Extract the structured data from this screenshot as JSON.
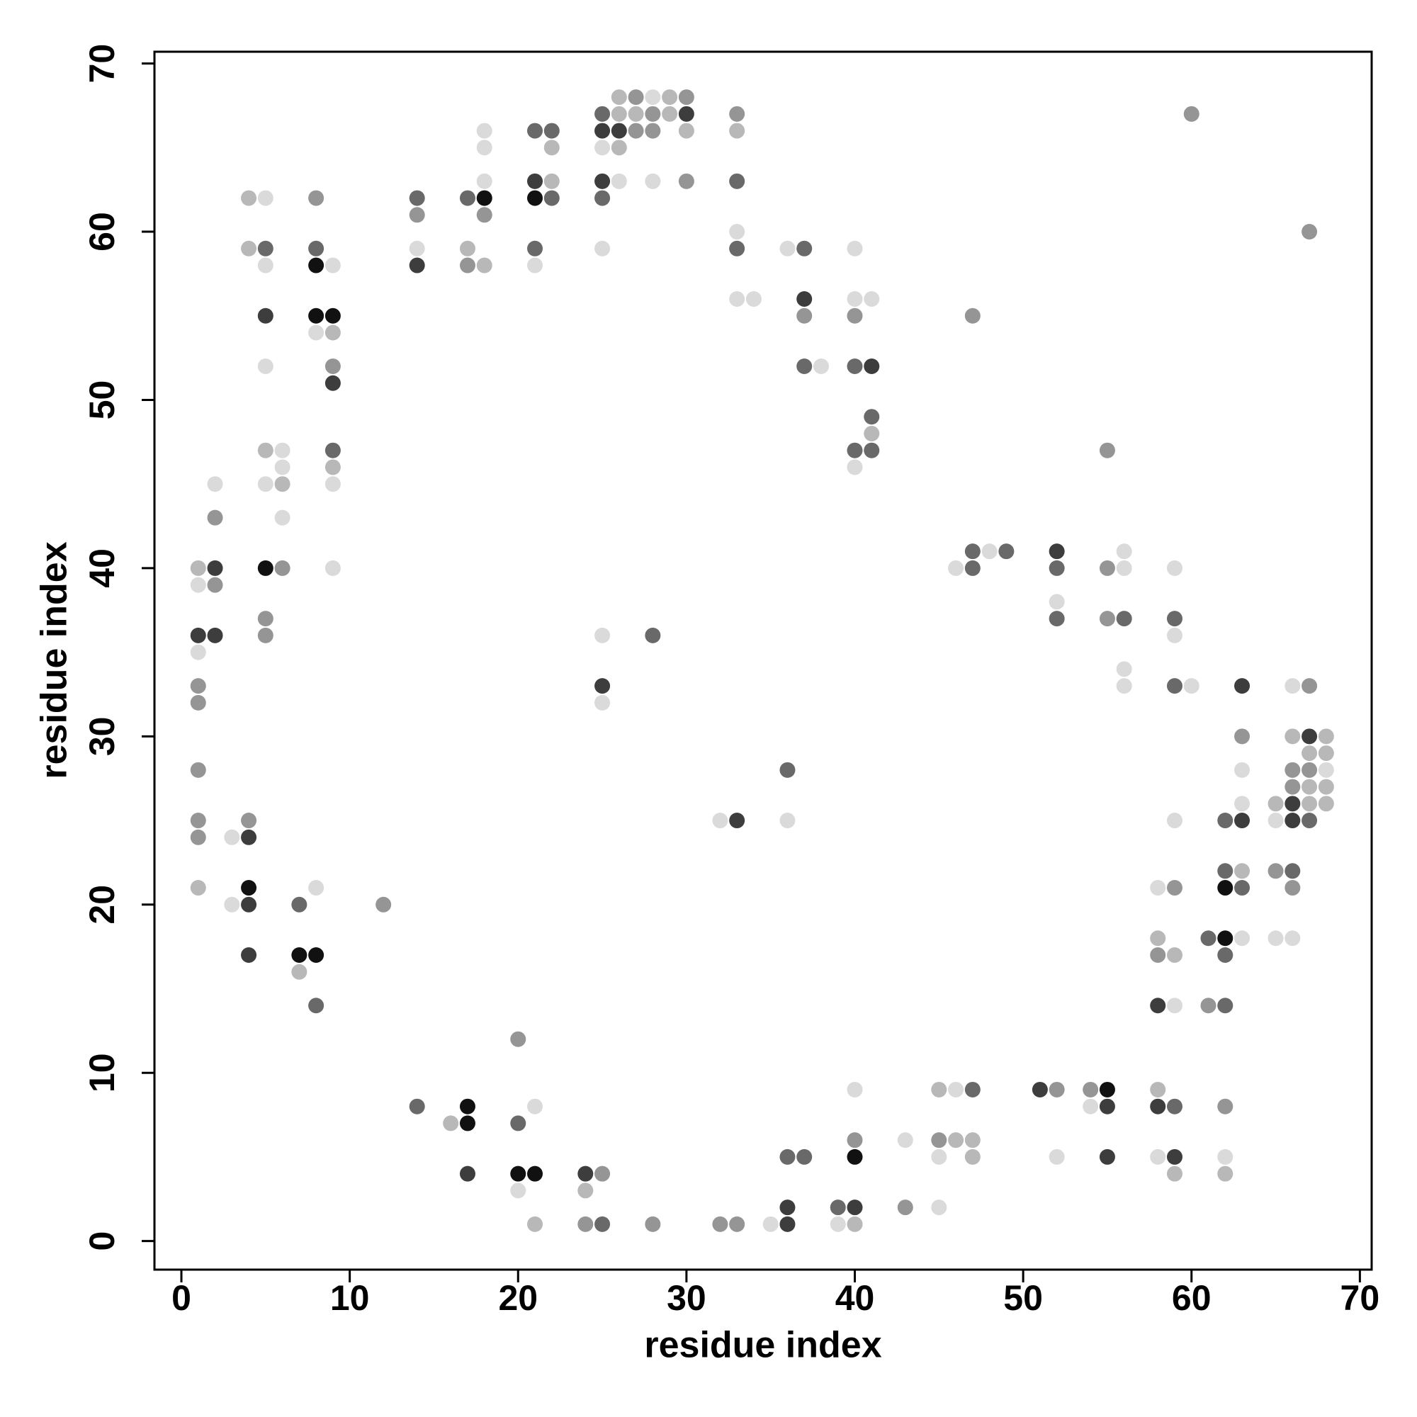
{
  "chart_data": {
    "type": "scatter",
    "xlabel": "residue index",
    "ylabel": "residue index",
    "xlim": [
      -1.6,
      70.7
    ],
    "ylim": [
      -1.7,
      70.7
    ],
    "xticks": [
      0,
      10,
      20,
      30,
      40,
      50,
      60,
      70
    ],
    "yticks": [
      0,
      10,
      20,
      30,
      40,
      50,
      60,
      70
    ],
    "grid": false,
    "x": [
      1,
      1,
      1,
      1,
      1,
      1,
      1,
      1,
      1,
      1,
      2,
      2,
      2,
      2,
      2,
      3,
      3,
      4,
      4,
      4,
      4,
      4,
      4,
      4,
      5,
      5,
      5,
      5,
      5,
      5,
      5,
      5,
      5,
      5,
      6,
      6,
      6,
      6,
      6,
      7,
      7,
      7,
      8,
      8,
      8,
      8,
      8,
      8,
      8,
      8,
      9,
      9,
      9,
      9,
      9,
      9,
      9,
      9,
      9,
      12,
      14,
      14,
      14,
      14,
      14,
      16,
      17,
      17,
      17,
      17,
      17,
      17,
      18,
      18,
      18,
      18,
      18,
      18,
      20,
      20,
      20,
      20,
      21,
      21,
      21,
      21,
      21,
      21,
      21,
      21,
      22,
      22,
      22,
      22,
      24,
      24,
      24,
      25,
      25,
      25,
      25,
      25,
      25,
      25,
      25,
      25,
      25,
      25,
      26,
      26,
      26,
      26,
      26,
      27,
      27,
      27,
      28,
      28,
      28,
      28,
      28,
      28,
      29,
      29,
      30,
      30,
      30,
      30,
      32,
      32,
      33,
      33,
      33,
      33,
      33,
      33,
      33,
      33,
      34,
      35,
      36,
      36,
      36,
      36,
      36,
      36,
      37,
      37,
      37,
      37,
      37,
      38,
      39,
      39,
      40,
      40,
      40,
      40,
      40,
      40,
      40,
      40,
      40,
      40,
      40,
      41,
      41,
      41,
      41,
      41,
      43,
      43,
      45,
      45,
      45,
      45,
      46,
      46,
      46,
      47,
      47,
      47,
      47,
      47,
      47,
      48,
      49,
      51,
      52,
      52,
      52,
      52,
      52,
      52,
      54,
      54,
      55,
      55,
      55,
      55,
      55,
      55,
      56,
      56,
      56,
      56,
      56,
      58,
      58,
      58,
      58,
      58,
      58,
      58,
      59,
      59,
      59,
      59,
      59,
      59,
      59,
      59,
      59,
      59,
      59,
      60,
      60,
      61,
      61,
      62,
      62,
      62,
      62,
      62,
      62,
      62,
      62,
      62,
      63,
      63,
      63,
      63,
      63,
      63,
      63,
      63,
      65,
      65,
      65,
      65,
      66,
      66,
      66,
      66,
      66,
      66,
      66,
      66,
      66,
      67,
      67,
      67,
      67,
      67,
      67,
      67,
      67,
      68,
      68,
      68,
      68,
      68
    ],
    "series": [
      {
        "values": [
          40,
          39,
          36,
          35,
          33,
          32,
          28,
          25,
          24,
          21,
          45,
          43,
          40,
          39,
          36,
          24,
          20,
          62,
          59,
          25,
          24,
          21,
          20,
          17,
          62,
          59,
          58,
          55,
          52,
          47,
          45,
          40,
          37,
          36,
          47,
          46,
          45,
          43,
          40,
          20,
          17,
          16,
          62,
          59,
          58,
          55,
          54,
          21,
          17,
          14,
          58,
          55,
          54,
          52,
          51,
          47,
          46,
          45,
          40,
          20,
          62,
          61,
          59,
          58,
          8,
          7,
          62,
          59,
          58,
          8,
          7,
          4,
          66,
          65,
          63,
          62,
          61,
          58,
          12,
          7,
          4,
          3,
          66,
          63,
          62,
          59,
          58,
          8,
          4,
          1,
          66,
          65,
          63,
          62,
          4,
          3,
          1,
          67,
          66,
          65,
          63,
          62,
          59,
          36,
          33,
          32,
          4,
          1,
          68,
          67,
          66,
          65,
          63,
          68,
          67,
          66,
          68,
          67,
          66,
          63,
          36,
          1,
          68,
          67,
          68,
          67,
          66,
          63,
          25,
          1,
          67,
          66,
          63,
          60,
          59,
          56,
          25,
          1,
          56,
          1,
          59,
          28,
          25,
          5,
          2,
          1,
          59,
          56,
          55,
          52,
          5,
          52,
          2,
          1,
          59,
          56,
          55,
          52,
          47,
          46,
          9,
          6,
          5,
          2,
          1,
          56,
          52,
          49,
          48,
          47,
          6,
          2,
          9,
          6,
          5,
          2,
          40,
          9,
          6,
          55,
          41,
          40,
          9,
          6,
          5,
          41,
          41,
          9,
          41,
          40,
          38,
          37,
          9,
          5,
          9,
          8,
          47,
          40,
          37,
          9,
          8,
          5,
          41,
          40,
          37,
          34,
          33,
          21,
          18,
          17,
          14,
          9,
          8,
          5,
          40,
          37,
          36,
          33,
          25,
          21,
          17,
          14,
          8,
          5,
          4,
          67,
          33,
          18,
          14,
          25,
          22,
          21,
          18,
          17,
          14,
          8,
          5,
          4,
          33,
          30,
          28,
          26,
          25,
          22,
          21,
          18,
          26,
          25,
          22,
          18,
          33,
          30,
          28,
          27,
          26,
          25,
          22,
          21,
          18,
          60,
          33,
          30,
          29,
          28,
          27,
          26,
          25,
          30,
          29,
          28,
          27,
          26
        ],
        "colors": [
          "#b8b8b8",
          "#dadada",
          "#3d3d3d",
          "#dadada",
          "#959595",
          "#959595",
          "#959595",
          "#959595",
          "#959595",
          "#b8b8b8",
          "#dadada",
          "#959595",
          "#3d3d3d",
          "#959595",
          "#3d3d3d",
          "#dadada",
          "#dadada",
          "#b8b8b8",
          "#b8b8b8",
          "#959595",
          "#3d3d3d",
          "#111111",
          "#3d3d3d",
          "#3d3d3d",
          "#dadada",
          "#696969",
          "#dadada",
          "#3d3d3d",
          "#dadada",
          "#b8b8b8",
          "#dadada",
          "#111111",
          "#959595",
          "#959595",
          "#dadada",
          "#dadada",
          "#b8b8b8",
          "#dadada",
          "#959595",
          "#696969",
          "#111111",
          "#b8b8b8",
          "#959595",
          "#696969",
          "#111111",
          "#111111",
          "#dadada",
          "#dadada",
          "#111111",
          "#696969",
          "#dadada",
          "#111111",
          "#b8b8b8",
          "#959595",
          "#3d3d3d",
          "#696969",
          "#b8b8b8",
          "#dadada",
          "#dadada",
          "#959595",
          "#696969",
          "#959595",
          "#dadada",
          "#3d3d3d",
          "#696969",
          "#b8b8b8",
          "#696969",
          "#b8b8b8",
          "#959595",
          "#111111",
          "#111111",
          "#3d3d3d",
          "#dadada",
          "#dadada",
          "#dadada",
          "#111111",
          "#959595",
          "#b8b8b8",
          "#959595",
          "#696969",
          "#111111",
          "#dadada",
          "#696969",
          "#3d3d3d",
          "#111111",
          "#696969",
          "#dadada",
          "#dadada",
          "#111111",
          "#b8b8b8",
          "#696969",
          "#b8b8b8",
          "#b8b8b8",
          "#696969",
          "#3d3d3d",
          "#b8b8b8",
          "#959595",
          "#696969",
          "#3d3d3d",
          "#dadada",
          "#3d3d3d",
          "#696969",
          "#dadada",
          "#dadada",
          "#3d3d3d",
          "#dadada",
          "#959595",
          "#696969",
          "#b8b8b8",
          "#b8b8b8",
          "#3d3d3d",
          "#b8b8b8",
          "#dadada",
          "#959595",
          "#b8b8b8",
          "#959595",
          "#dadada",
          "#959595",
          "#959595",
          "#dadada",
          "#696969",
          "#959595",
          "#b8b8b8",
          "#b8b8b8",
          "#959595",
          "#3d3d3d",
          "#b8b8b8",
          "#959595",
          "#dadada",
          "#959595",
          "#959595",
          "#b8b8b8",
          "#696969",
          "#dadada",
          "#696969",
          "#dadada",
          "#3d3d3d",
          "#959595",
          "#dadada",
          "#dadada",
          "#dadada",
          "#696969",
          "#dadada",
          "#696969",
          "#3d3d3d",
          "#3d3d3d",
          "#696969",
          "#3d3d3d",
          "#959595",
          "#696969",
          "#696969",
          "#dadada",
          "#696969",
          "#dadada",
          "#dadada",
          "#dadada",
          "#959595",
          "#696969",
          "#696969",
          "#dadada",
          "#dadada",
          "#959595",
          "#111111",
          "#3d3d3d",
          "#b8b8b8",
          "#dadada",
          "#3d3d3d",
          "#696969",
          "#b8b8b8",
          "#696969",
          "#dadada",
          "#959595",
          "#b8b8b8",
          "#959595",
          "#dadada",
          "#dadada",
          "#dadada",
          "#dadada",
          "#b8b8b8",
          "#959595",
          "#696969",
          "#696969",
          "#696969",
          "#b8b8b8",
          "#b8b8b8",
          "#dadada",
          "#696969",
          "#3d3d3d",
          "#3d3d3d",
          "#696969",
          "#dadada",
          "#696969",
          "#959595",
          "#dadada",
          "#959595",
          "#dadada",
          "#959595",
          "#959595",
          "#959595",
          "#111111",
          "#3d3d3d",
          "#3d3d3d",
          "#dadada",
          "#dadada",
          "#696969",
          "#dadada",
          "#dadada",
          "#dadada",
          "#b8b8b8",
          "#959595",
          "#3d3d3d",
          "#b8b8b8",
          "#3d3d3d",
          "#dadada",
          "#dadada",
          "#696969",
          "#dadada",
          "#696969",
          "#dadada",
          "#959595",
          "#b8b8b8",
          "#dadada",
          "#696969",
          "#3d3d3d",
          "#b8b8b8",
          "#959595",
          "#dadada",
          "#696969",
          "#959595",
          "#696969",
          "#696969",
          "#111111",
          "#111111",
          "#696969",
          "#696969",
          "#959595",
          "#dadada",
          "#b8b8b8",
          "#3d3d3d",
          "#959595",
          "#dadada",
          "#dadada",
          "#3d3d3d",
          "#b8b8b8",
          "#696969",
          "#dadada",
          "#b8b8b8",
          "#dadada",
          "#959595",
          "#dadada",
          "#dadada",
          "#b8b8b8",
          "#959595",
          "#959595",
          "#3d3d3d",
          "#3d3d3d",
          "#696969",
          "#959595",
          "#dadada",
          "#959595",
          "#959595",
          "#3d3d3d",
          "#b8b8b8",
          "#959595",
          "#b8b8b8",
          "#b8b8b8",
          "#696969",
          "#b8b8b8",
          "#b8b8b8",
          "#dadada",
          "#b8b8b8",
          "#b8b8b8"
        ]
      }
    ]
  }
}
